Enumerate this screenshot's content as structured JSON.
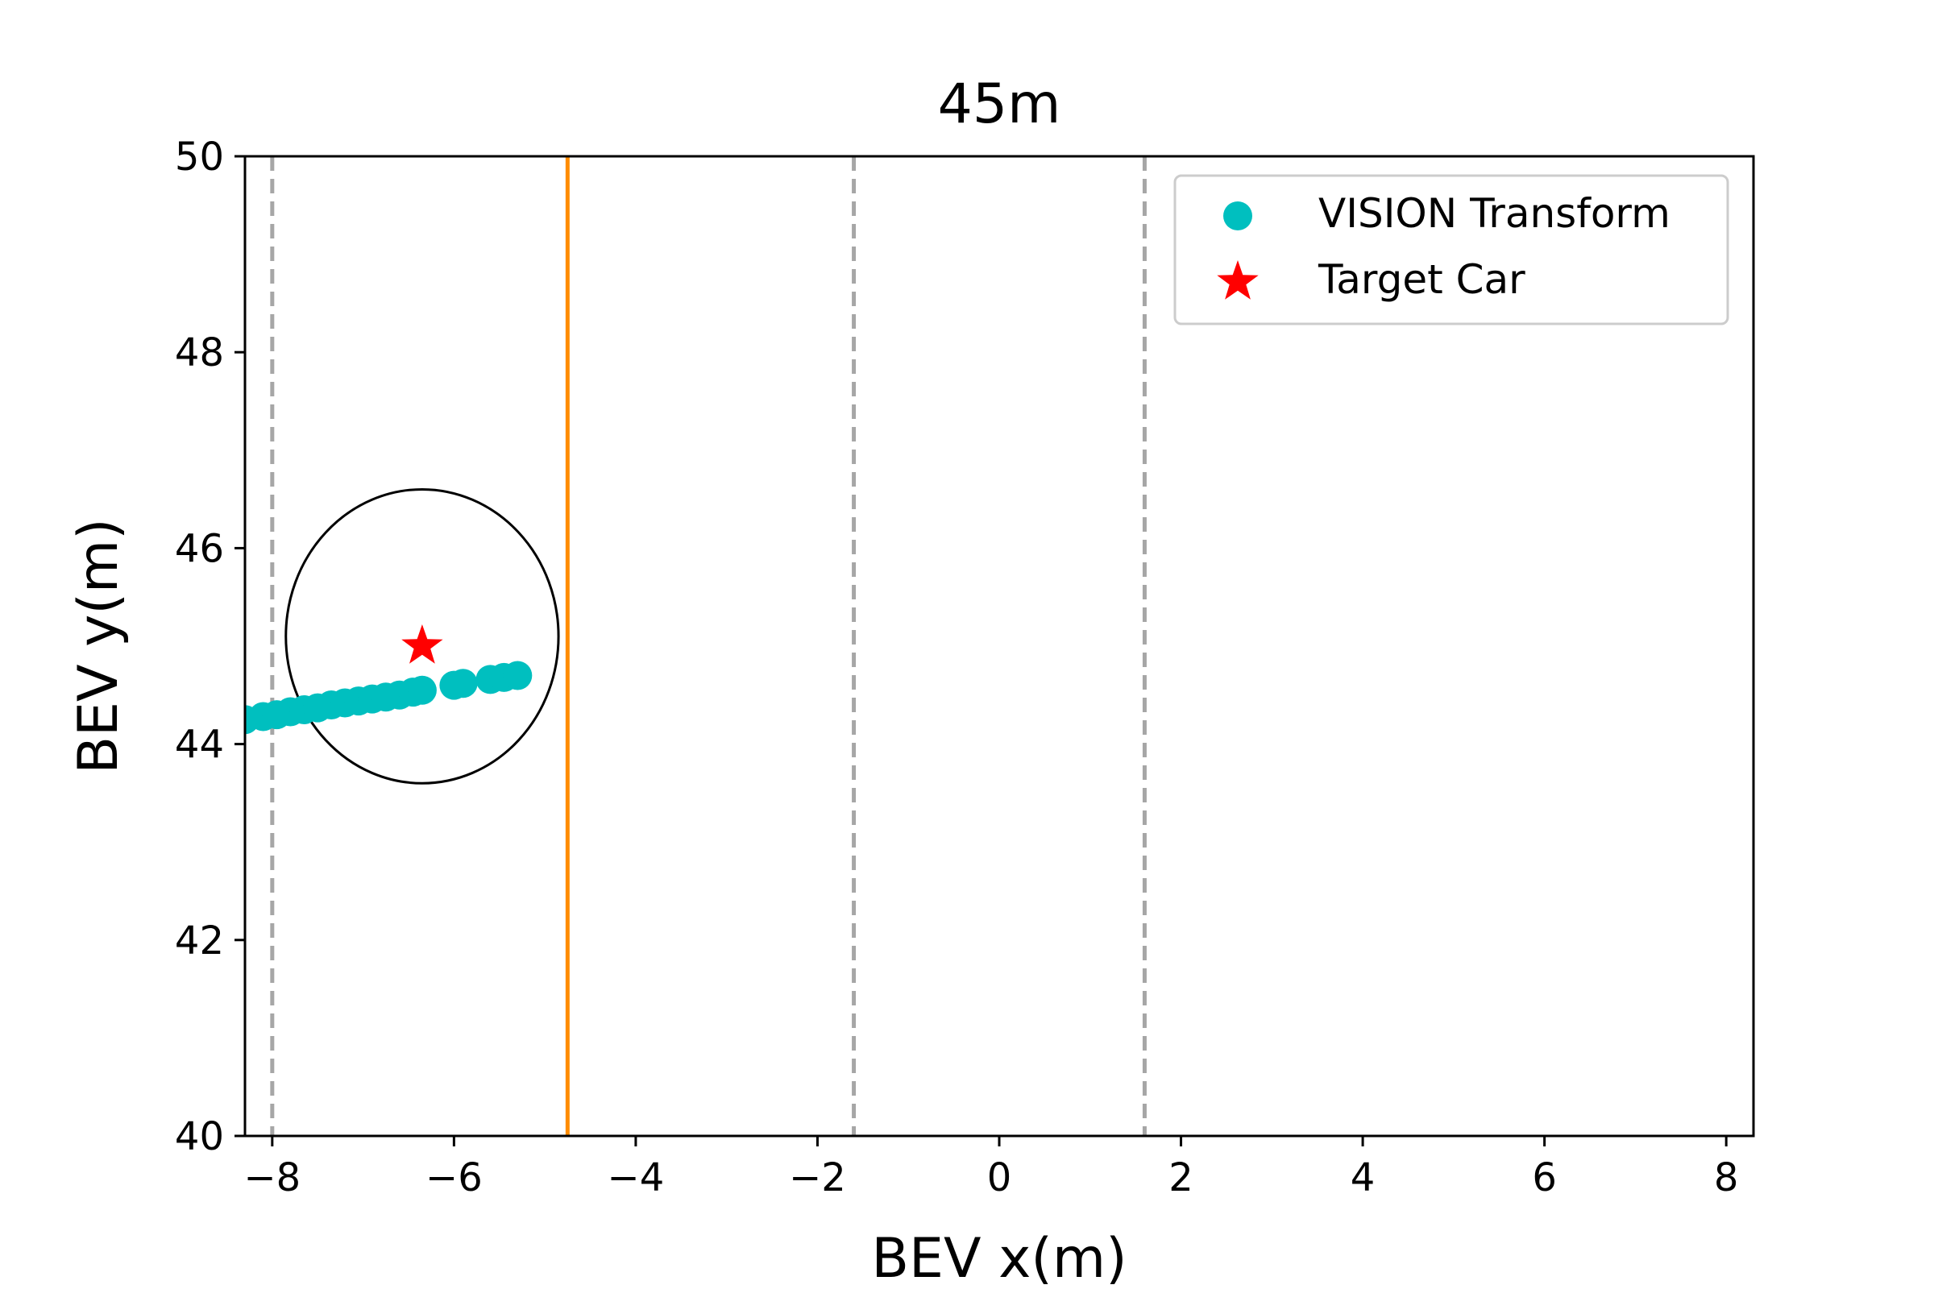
{
  "chart_data": {
    "type": "scatter",
    "title": "45m",
    "xlabel": "BEV x(m)",
    "ylabel": "BEV y(m)",
    "xlim": [
      -8.3,
      8.3
    ],
    "ylim": [
      40,
      50
    ],
    "xticks": [
      -8,
      -6,
      -4,
      -2,
      0,
      2,
      4,
      6,
      8
    ],
    "xtick_labels": [
      "−8",
      "−6",
      "−4",
      "−2",
      "0",
      "2",
      "4",
      "6",
      "8"
    ],
    "yticks": [
      40,
      42,
      44,
      46,
      48,
      50
    ],
    "ytick_labels": [
      "40",
      "42",
      "44",
      "46",
      "48",
      "50"
    ],
    "grid": false,
    "legend_position": "top-right",
    "series": [
      {
        "name": "VISION Transform",
        "marker": "circle",
        "color": "#00bfbf",
        "x": [
          -8.3,
          -8.1,
          -7.95,
          -7.8,
          -7.65,
          -7.5,
          -7.35,
          -7.2,
          -7.05,
          -6.9,
          -6.75,
          -6.6,
          -6.45,
          -6.35,
          -6.0,
          -5.9,
          -5.6,
          -5.45,
          -5.3
        ],
        "y": [
          44.25,
          44.28,
          44.3,
          44.33,
          44.35,
          44.37,
          44.4,
          44.42,
          44.44,
          44.46,
          44.48,
          44.5,
          44.53,
          44.55,
          44.6,
          44.62,
          44.66,
          44.68,
          44.7
        ]
      },
      {
        "name": "Target Car",
        "marker": "star",
        "color": "#ff0000",
        "x": [
          -6.35
        ],
        "y": [
          45.0
        ]
      }
    ],
    "ellipse": {
      "cx": -6.35,
      "cy": 45.1,
      "rx": 1.5,
      "ry": 1.5,
      "color": "#000000"
    },
    "vlines": [
      {
        "x": -8.0,
        "style": "dashed",
        "color": "#a6a6a6"
      },
      {
        "x": -4.75,
        "style": "solid",
        "color": "#ff8c00"
      },
      {
        "x": -1.6,
        "style": "dashed",
        "color": "#a6a6a6"
      },
      {
        "x": 1.6,
        "style": "dashed",
        "color": "#a6a6a6"
      }
    ]
  }
}
